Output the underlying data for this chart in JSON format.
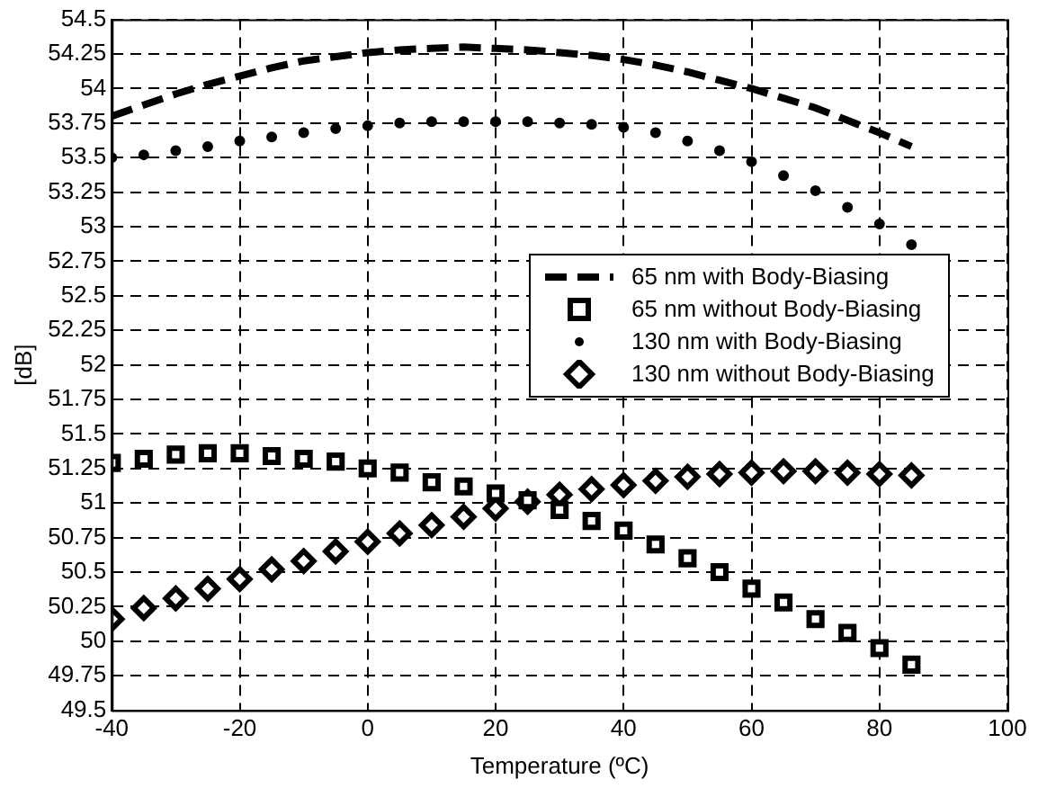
{
  "chart_data": {
    "type": "line",
    "xlabel": "Temperature (ºC)",
    "ylabel": "[dB]",
    "xlim": [
      -40,
      100
    ],
    "xticks": [
      -40,
      -20,
      0,
      20,
      40,
      60,
      80,
      100
    ],
    "ylim": [
      49.5,
      54.5
    ],
    "yticks": [
      49.5,
      49.75,
      50,
      50.25,
      50.5,
      50.75,
      51,
      51.25,
      51.5,
      51.75,
      52,
      52.25,
      52.5,
      52.75,
      53,
      53.25,
      53.5,
      53.75,
      54,
      54.25,
      54.5
    ],
    "grid": true,
    "legend": "right",
    "series": [
      {
        "name": "65 nm with Body-Biasing",
        "type": "line",
        "color": "#000000",
        "marker": "none",
        "line_style": "dashed",
        "x": [
          -40,
          -35,
          -30,
          -25,
          -20,
          -15,
          -10,
          -5,
          0,
          5,
          10,
          15,
          20,
          25,
          30,
          35,
          40,
          45,
          50,
          55,
          60,
          65,
          70,
          75,
          80,
          85
        ],
        "values": [
          53.8,
          53.88,
          53.96,
          54.03,
          54.09,
          54.15,
          54.2,
          54.23,
          54.26,
          54.28,
          54.29,
          54.3,
          54.29,
          54.28,
          54.26,
          54.24,
          54.21,
          54.17,
          54.12,
          54.06,
          54.0,
          53.93,
          53.86,
          53.77,
          53.68,
          53.58
        ]
      },
      {
        "name": "65 nm without Body-Biasing",
        "type": "scatter",
        "color": "#000000",
        "marker": "square",
        "x": [
          -40,
          -35,
          -30,
          -25,
          -20,
          -15,
          -10,
          -5,
          0,
          5,
          10,
          15,
          20,
          25,
          30,
          35,
          40,
          45,
          50,
          55,
          60,
          65,
          70,
          75,
          80,
          85
        ],
        "values": [
          51.29,
          51.32,
          51.35,
          51.36,
          51.36,
          51.34,
          51.32,
          51.3,
          51.25,
          51.22,
          51.15,
          51.12,
          51.07,
          51.02,
          50.95,
          50.87,
          50.8,
          50.7,
          50.6,
          50.5,
          50.38,
          50.28,
          50.16,
          50.06,
          49.95,
          49.83
        ]
      },
      {
        "name": "130 nm with Body-Biasing",
        "type": "scatter",
        "color": "#000000",
        "marker": "circle",
        "x": [
          -40,
          -35,
          -30,
          -25,
          -20,
          -15,
          -10,
          -5,
          0,
          5,
          10,
          15,
          20,
          25,
          30,
          35,
          40,
          45,
          50,
          55,
          60,
          65,
          70,
          75,
          80,
          85
        ],
        "values": [
          53.5,
          53.52,
          53.55,
          53.58,
          53.62,
          53.65,
          53.68,
          53.71,
          53.73,
          53.75,
          53.76,
          53.76,
          53.76,
          53.76,
          53.75,
          53.74,
          53.72,
          53.68,
          53.62,
          53.55,
          53.47,
          53.37,
          53.26,
          53.14,
          53.02,
          52.87
        ]
      },
      {
        "name": "130 nm without Body-Biasing",
        "type": "scatter",
        "color": "#000000",
        "marker": "diamond",
        "x": [
          -40,
          -35,
          -30,
          -25,
          -20,
          -15,
          -10,
          -5,
          0,
          5,
          10,
          15,
          20,
          25,
          30,
          35,
          40,
          45,
          50,
          55,
          60,
          65,
          70,
          75,
          80,
          85
        ],
        "values": [
          50.16,
          50.24,
          50.31,
          50.38,
          50.45,
          50.52,
          50.58,
          50.65,
          50.72,
          50.78,
          50.84,
          50.9,
          50.96,
          51.01,
          51.06,
          51.1,
          51.13,
          51.16,
          51.19,
          51.21,
          51.22,
          51.23,
          51.23,
          51.22,
          51.21,
          51.2
        ]
      }
    ]
  }
}
